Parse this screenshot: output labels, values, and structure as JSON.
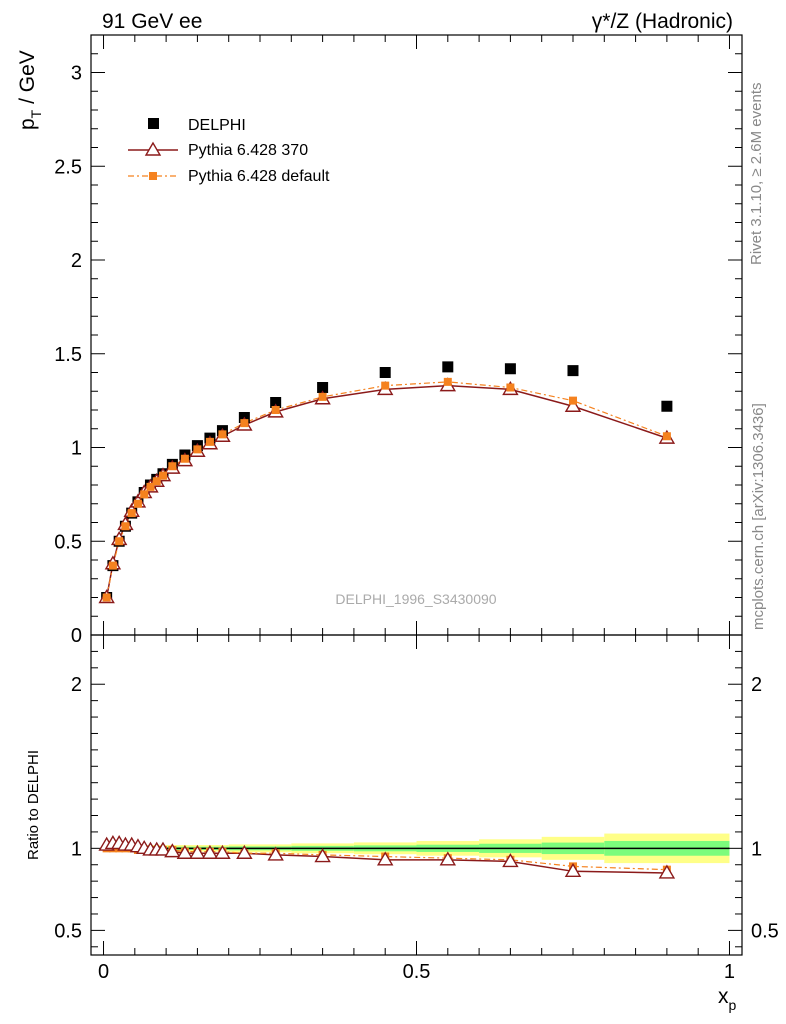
{
  "header": {
    "left_label": "91 GeV ee",
    "right_label": "γ*/Z (Hadronic)"
  },
  "side_labels": {
    "rivet": "Rivet 3.1.10, ≥ 2.6M events",
    "mcplots": "mcplots.cern.ch [arXiv:1306.3436]"
  },
  "watermark": "DELPHI_1996_S3430090",
  "colors": {
    "data": "#000000",
    "pythia_370": "#8b1a1a",
    "pythia_default": "#f5821f",
    "band_inner": "#7cfc7c",
    "band_outer": "#ffff88"
  },
  "chart_data": [
    {
      "type": "line",
      "panel": "main",
      "ylabel": "p_T / GeV",
      "xlim": [
        -0.02,
        1.02
      ],
      "ylim": [
        0,
        3.2
      ],
      "yticks": [
        0,
        0.5,
        1,
        1.5,
        2,
        2.5,
        3
      ],
      "ytick_labels": [
        "0",
        "0.5",
        "1",
        "1.5",
        "2",
        "2.5",
        "3"
      ],
      "legend": {
        "position": "top-left",
        "entries": [
          "DELPHI",
          "Pythia 6.428 370",
          "Pythia 6.428 default"
        ]
      },
      "series": [
        {
          "name": "DELPHI",
          "style": "square-marker",
          "x": [
            0.005,
            0.015,
            0.025,
            0.035,
            0.045,
            0.055,
            0.065,
            0.075,
            0.085,
            0.095,
            0.11,
            0.13,
            0.15,
            0.17,
            0.19,
            0.225,
            0.275,
            0.35,
            0.45,
            0.55,
            0.65,
            0.75,
            0.9
          ],
          "y": [
            0.2,
            0.37,
            0.5,
            0.58,
            0.65,
            0.71,
            0.76,
            0.8,
            0.83,
            0.86,
            0.91,
            0.96,
            1.01,
            1.05,
            1.09,
            1.16,
            1.24,
            1.32,
            1.4,
            1.43,
            1.42,
            1.41,
            1.22
          ]
        },
        {
          "name": "Pythia 6.428 370",
          "style": "open-triangle-solid-line",
          "x": [
            0.005,
            0.015,
            0.025,
            0.035,
            0.045,
            0.055,
            0.065,
            0.075,
            0.085,
            0.095,
            0.11,
            0.13,
            0.15,
            0.17,
            0.19,
            0.225,
            0.275,
            0.35,
            0.45,
            0.55,
            0.65,
            0.75,
            0.9
          ],
          "y": [
            0.2,
            0.38,
            0.51,
            0.59,
            0.66,
            0.71,
            0.76,
            0.79,
            0.82,
            0.85,
            0.89,
            0.93,
            0.98,
            1.02,
            1.06,
            1.12,
            1.19,
            1.26,
            1.31,
            1.33,
            1.31,
            1.22,
            1.05
          ]
        },
        {
          "name": "Pythia 6.428 default",
          "style": "small-square-dashdot-line",
          "x": [
            0.005,
            0.015,
            0.025,
            0.035,
            0.045,
            0.055,
            0.065,
            0.075,
            0.085,
            0.095,
            0.11,
            0.13,
            0.15,
            0.17,
            0.19,
            0.225,
            0.275,
            0.35,
            0.45,
            0.55,
            0.65,
            0.75,
            0.9
          ],
          "y": [
            0.2,
            0.37,
            0.5,
            0.58,
            0.65,
            0.7,
            0.75,
            0.79,
            0.82,
            0.85,
            0.9,
            0.94,
            0.99,
            1.03,
            1.07,
            1.13,
            1.2,
            1.27,
            1.33,
            1.35,
            1.32,
            1.25,
            1.06
          ]
        }
      ]
    },
    {
      "type": "line",
      "panel": "ratio",
      "ylabel": "Ratio to DELPHI",
      "xlabel": "x_p",
      "xlim": [
        -0.02,
        1.02
      ],
      "ylim": [
        0.35,
        2.3
      ],
      "yticks": [
        0.5,
        1,
        2
      ],
      "ytick_labels": [
        "0.5",
        "1",
        "2"
      ],
      "xticks": [
        0,
        0.5,
        1
      ],
      "xtick_labels": [
        "0",
        "0.5",
        "1"
      ],
      "reference_line": 1,
      "uncertainty_band": {
        "x_edges": [
          0,
          0.2,
          0.3,
          0.4,
          0.5,
          0.6,
          0.7,
          0.8,
          1.0
        ],
        "inner": [
          0.01,
          0.012,
          0.015,
          0.018,
          0.022,
          0.028,
          0.035,
          0.045
        ],
        "outer": [
          0.02,
          0.024,
          0.03,
          0.036,
          0.045,
          0.055,
          0.07,
          0.09
        ]
      },
      "series": [
        {
          "name": "Pythia 6.428 370",
          "x": [
            0.005,
            0.015,
            0.025,
            0.035,
            0.045,
            0.055,
            0.065,
            0.075,
            0.085,
            0.095,
            0.11,
            0.13,
            0.15,
            0.17,
            0.19,
            0.225,
            0.275,
            0.35,
            0.45,
            0.55,
            0.65,
            0.75,
            0.9
          ],
          "y": [
            1.02,
            1.03,
            1.03,
            1.02,
            1.02,
            1.01,
            1.0,
            0.99,
            0.99,
            0.99,
            0.98,
            0.97,
            0.97,
            0.97,
            0.97,
            0.97,
            0.96,
            0.95,
            0.93,
            0.93,
            0.92,
            0.86,
            0.85
          ]
        },
        {
          "name": "Pythia 6.428 default",
          "x": [
            0.005,
            0.015,
            0.025,
            0.035,
            0.045,
            0.055,
            0.065,
            0.075,
            0.085,
            0.095,
            0.11,
            0.13,
            0.15,
            0.17,
            0.19,
            0.225,
            0.275,
            0.35,
            0.45,
            0.55,
            0.65,
            0.75,
            0.9
          ],
          "y": [
            1.0,
            1.0,
            1.0,
            1.0,
            1.0,
            0.99,
            0.99,
            0.99,
            0.99,
            0.99,
            0.99,
            0.98,
            0.98,
            0.98,
            0.98,
            0.97,
            0.97,
            0.96,
            0.95,
            0.94,
            0.93,
            0.89,
            0.87
          ]
        }
      ]
    }
  ]
}
